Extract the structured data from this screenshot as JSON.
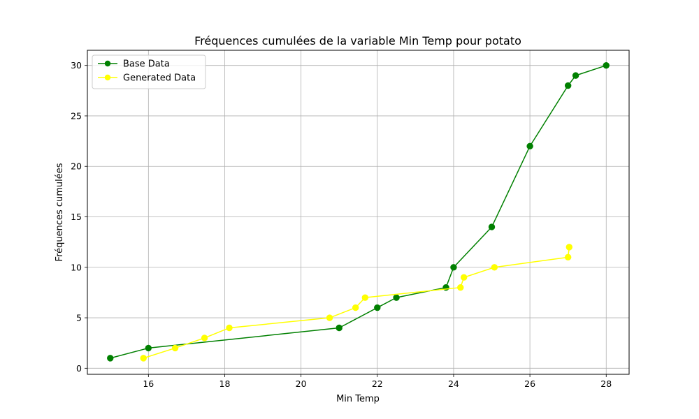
{
  "chart_data": {
    "type": "line",
    "title": "Fréquences cumulées de la variable Min Temp pour potato",
    "xlabel": "Min Temp",
    "ylabel": "Fréquences cumulées",
    "xlim": [
      14.4,
      28.6
    ],
    "ylim": [
      -0.6,
      31.5
    ],
    "xticks": [
      16,
      18,
      20,
      22,
      24,
      26,
      28
    ],
    "yticks": [
      0,
      5,
      10,
      15,
      20,
      25,
      30
    ],
    "grid": true,
    "legend_position": "top-left",
    "series": [
      {
        "name": "Base Data",
        "color": "#008000",
        "marker": "circle",
        "points": [
          {
            "x": 15.0,
            "y": 1
          },
          {
            "x": 16.0,
            "y": 2
          },
          {
            "x": 21.0,
            "y": 4
          },
          {
            "x": 22.0,
            "y": 6
          },
          {
            "x": 22.5,
            "y": 7
          },
          {
            "x": 23.8,
            "y": 8
          },
          {
            "x": 24.0,
            "y": 10
          },
          {
            "x": 25.0,
            "y": 14
          },
          {
            "x": 26.0,
            "y": 22
          },
          {
            "x": 27.0,
            "y": 28
          },
          {
            "x": 27.2,
            "y": 29
          },
          {
            "x": 28.0,
            "y": 30
          }
        ]
      },
      {
        "name": "Generated Data",
        "color": "#ffff00",
        "marker": "circle",
        "points": [
          {
            "x": 15.87,
            "y": 1
          },
          {
            "x": 16.7,
            "y": 2
          },
          {
            "x": 17.47,
            "y": 3
          },
          {
            "x": 18.12,
            "y": 4
          },
          {
            "x": 20.75,
            "y": 5
          },
          {
            "x": 21.43,
            "y": 6
          },
          {
            "x": 21.68,
            "y": 7
          },
          {
            "x": 24.18,
            "y": 8
          },
          {
            "x": 24.27,
            "y": 9
          },
          {
            "x": 25.07,
            "y": 10
          },
          {
            "x": 27.0,
            "y": 11
          },
          {
            "x": 27.03,
            "y": 12
          }
        ]
      }
    ]
  }
}
